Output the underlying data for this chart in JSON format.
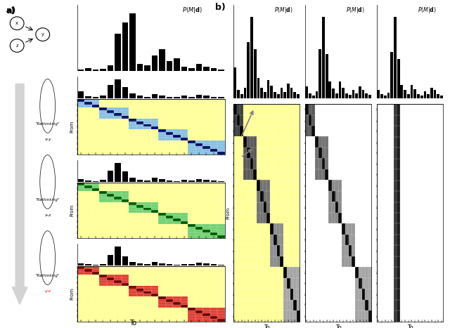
{
  "n": 20,
  "bar_main": [
    0.02,
    0.04,
    0.02,
    0.03,
    0.08,
    0.55,
    0.72,
    0.85,
    0.1,
    0.08,
    0.22,
    0.32,
    0.14,
    0.18,
    0.06,
    0.04,
    0.1,
    0.06,
    0.04,
    0.02
  ],
  "bar_b1": [
    0.3,
    0.08,
    0.04,
    0.1,
    0.55,
    0.8,
    0.48,
    0.2,
    0.1,
    0.06,
    0.18,
    0.12,
    0.06,
    0.04,
    0.1,
    0.06,
    0.14,
    0.1,
    0.06,
    0.04
  ],
  "bar_b2": [
    0.1,
    0.04,
    0.02,
    0.06,
    0.42,
    0.7,
    0.38,
    0.14,
    0.08,
    0.04,
    0.14,
    0.09,
    0.04,
    0.03,
    0.07,
    0.04,
    0.1,
    0.07,
    0.04,
    0.03
  ],
  "bar_b3": [
    0.06,
    0.03,
    0.02,
    0.04,
    0.35,
    0.62,
    0.3,
    0.1,
    0.06,
    0.03,
    0.1,
    0.07,
    0.03,
    0.02,
    0.05,
    0.03,
    0.08,
    0.06,
    0.03,
    0.02
  ],
  "yellow": [
    1.0,
    1.0,
    0.6,
    1.0
  ],
  "white": [
    1.0,
    1.0,
    1.0,
    1.0
  ],
  "blue_light": [
    0.53,
    0.75,
    0.88,
    1.0
  ],
  "blue_dark": [
    0.0,
    0.05,
    0.4,
    1.0
  ],
  "green_light": [
    0.45,
    0.82,
    0.45,
    1.0
  ],
  "green_dark": [
    0.0,
    0.35,
    0.0,
    1.0
  ],
  "red_light": [
    0.88,
    0.25,
    0.2,
    1.0
  ],
  "red_dark": [
    0.42,
    0.0,
    0.0,
    1.0
  ],
  "block_starts": [
    0,
    3,
    7,
    11,
    15
  ],
  "block_ends": [
    3,
    7,
    11,
    15,
    20
  ],
  "title_fontsize": 6,
  "label_fontsize": 7
}
